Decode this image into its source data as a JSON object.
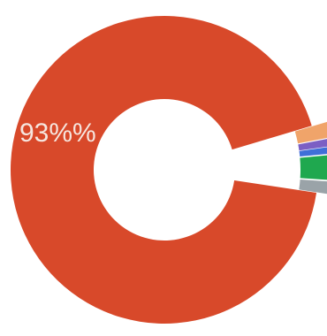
{
  "chart_data": {
    "type": "pie",
    "style": "donut",
    "exploded_small_slices": true,
    "legend": "none",
    "slices": [
      {
        "label": "",
        "value": 93,
        "color": "#d8492a",
        "display_label": "93%%"
      },
      {
        "label": "",
        "value": 1.6,
        "color": "#f0a46a"
      },
      {
        "label": "",
        "value": 0.8,
        "color": "#7b5fc4"
      },
      {
        "label": "",
        "value": 0.7,
        "color": "#3f6fd8"
      },
      {
        "label": "",
        "value": 2.6,
        "color": "#1fa84f"
      },
      {
        "label": "",
        "value": 1.3,
        "color": "#9aa3a8"
      }
    ]
  }
}
